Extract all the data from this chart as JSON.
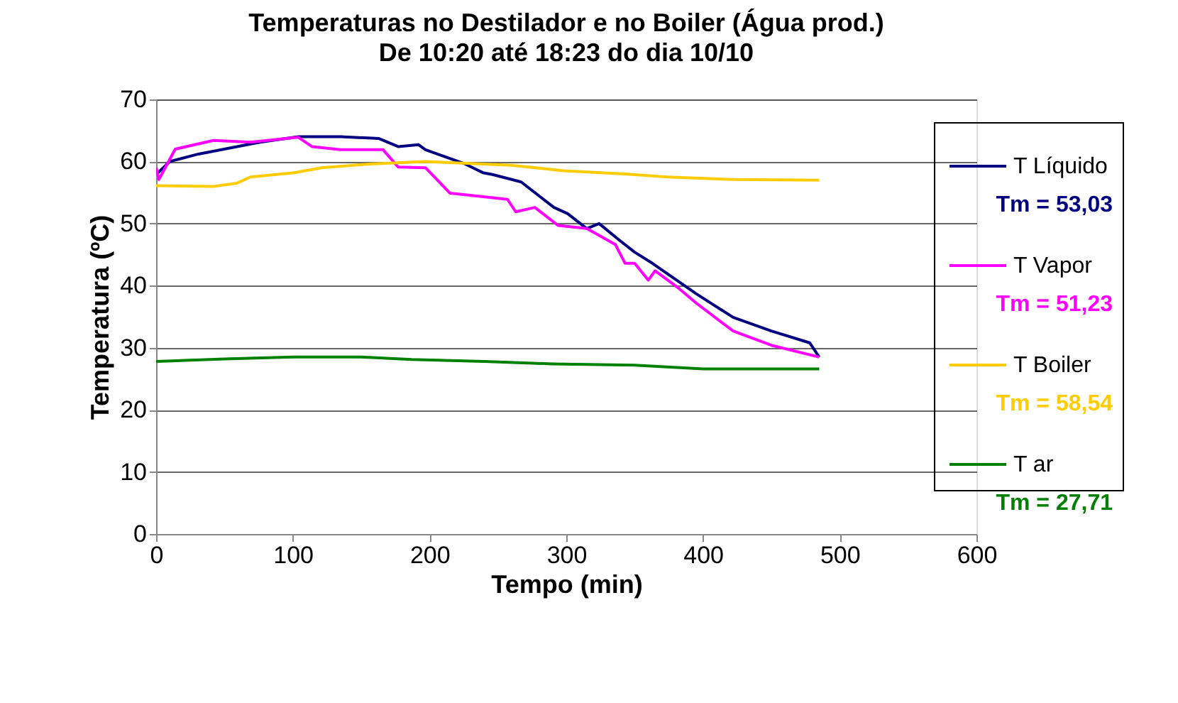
{
  "chart_data": {
    "type": "line",
    "title": "Temperaturas no Destilador e no Boiler (Água prod.)",
    "subtitle": "De 10:20 até 18:23 do dia 10/10",
    "xlabel": "Tempo (min)",
    "ylabel": "Temperatura (ºC)",
    "xlim": [
      0,
      600
    ],
    "xticks": [
      0,
      100,
      200,
      300,
      400,
      500,
      600
    ],
    "ylim": [
      0,
      70
    ],
    "yticks": [
      0,
      10,
      20,
      30,
      40,
      50,
      60,
      70
    ],
    "grid": "y",
    "legend": "right",
    "marker": "none",
    "line_style": "solid",
    "series": [
      {
        "name": "T Líquido",
        "color": "#000080",
        "x": [
          0,
          10,
          31,
          76,
          104,
          135,
          163,
          177,
          192,
          197,
          225,
          239,
          246,
          267,
          291,
          301,
          315,
          324,
          339,
          350,
          363,
          395,
          422,
          450,
          478,
          485
        ],
        "values": [
          57.9,
          60,
          61.2,
          63.1,
          64.0,
          64.0,
          63.7,
          62.4,
          62.7,
          61.9,
          59.7,
          58.2,
          57.9,
          56.7,
          52.6,
          51.6,
          49.2,
          50.0,
          47.3,
          45.4,
          43.6,
          38.7,
          34.9,
          32.7,
          30.8,
          28.5
        ]
      },
      {
        "name": "T Vapor",
        "color": "#ff00ff",
        "x": [
          0,
          2,
          14,
          42,
          69,
          104,
          114,
          135,
          166,
          177,
          197,
          215,
          232,
          257,
          263,
          277,
          294,
          315,
          336,
          343,
          350,
          360,
          365,
          381,
          395,
          422,
          450,
          485
        ],
        "values": [
          59,
          57.1,
          62,
          63.4,
          63.1,
          63.9,
          62.4,
          61.9,
          61.9,
          59.1,
          59,
          54.9,
          54.5,
          53.9,
          51.9,
          52.6,
          49.7,
          49.2,
          46.6,
          43.6,
          43.6,
          40.9,
          42.4,
          39.8,
          37.2,
          32.7,
          30.4,
          28.5
        ]
      },
      {
        "name": "T Boiler",
        "color": "#ffcc00",
        "x": [
          0,
          42,
          59,
          69,
          101,
          121,
          156,
          197,
          260,
          298,
          343,
          374,
          422,
          485
        ],
        "values": [
          56.1,
          56,
          56.5,
          57.5,
          58.2,
          59,
          59.6,
          60,
          59.4,
          58.5,
          58,
          57.5,
          57.1,
          57
        ]
      },
      {
        "name": "T ar",
        "color": "#008000",
        "x": [
          0,
          50,
          100,
          150,
          187,
          240,
          290,
          350,
          400,
          450,
          485
        ],
        "values": [
          27.8,
          28.2,
          28.5,
          28.5,
          28.1,
          27.8,
          27.4,
          27.2,
          26.6,
          26.6,
          26.6
        ]
      }
    ],
    "annotations": [
      "Tm = 53,03",
      "Tm = 51,23",
      "Tm = 58,54",
      "Tm = 27,71"
    ]
  }
}
